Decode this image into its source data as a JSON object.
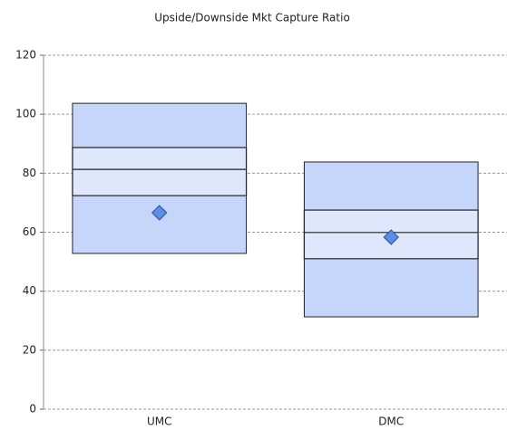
{
  "chart_data": {
    "type": "box",
    "title": "Upside/Downside Mkt Capture Ratio",
    "categories": [
      "UMC",
      "DMC"
    ],
    "low": [
      52.8,
      31.3
    ],
    "q1": [
      72.4,
      51
    ],
    "median": [
      81.3,
      59.9
    ],
    "q3": [
      88.7,
      67.5
    ],
    "high": [
      103.7,
      83.8
    ],
    "marker": [
      66.6,
      58.3
    ],
    "outer_color": "#c6d6fb",
    "inner_color": "#dfe7fd",
    "marker_color": "#5b8ee6",
    "ylim": [
      0,
      120
    ],
    "yticks": [
      0,
      20,
      40,
      60,
      80,
      100,
      120
    ],
    "grid": true
  }
}
